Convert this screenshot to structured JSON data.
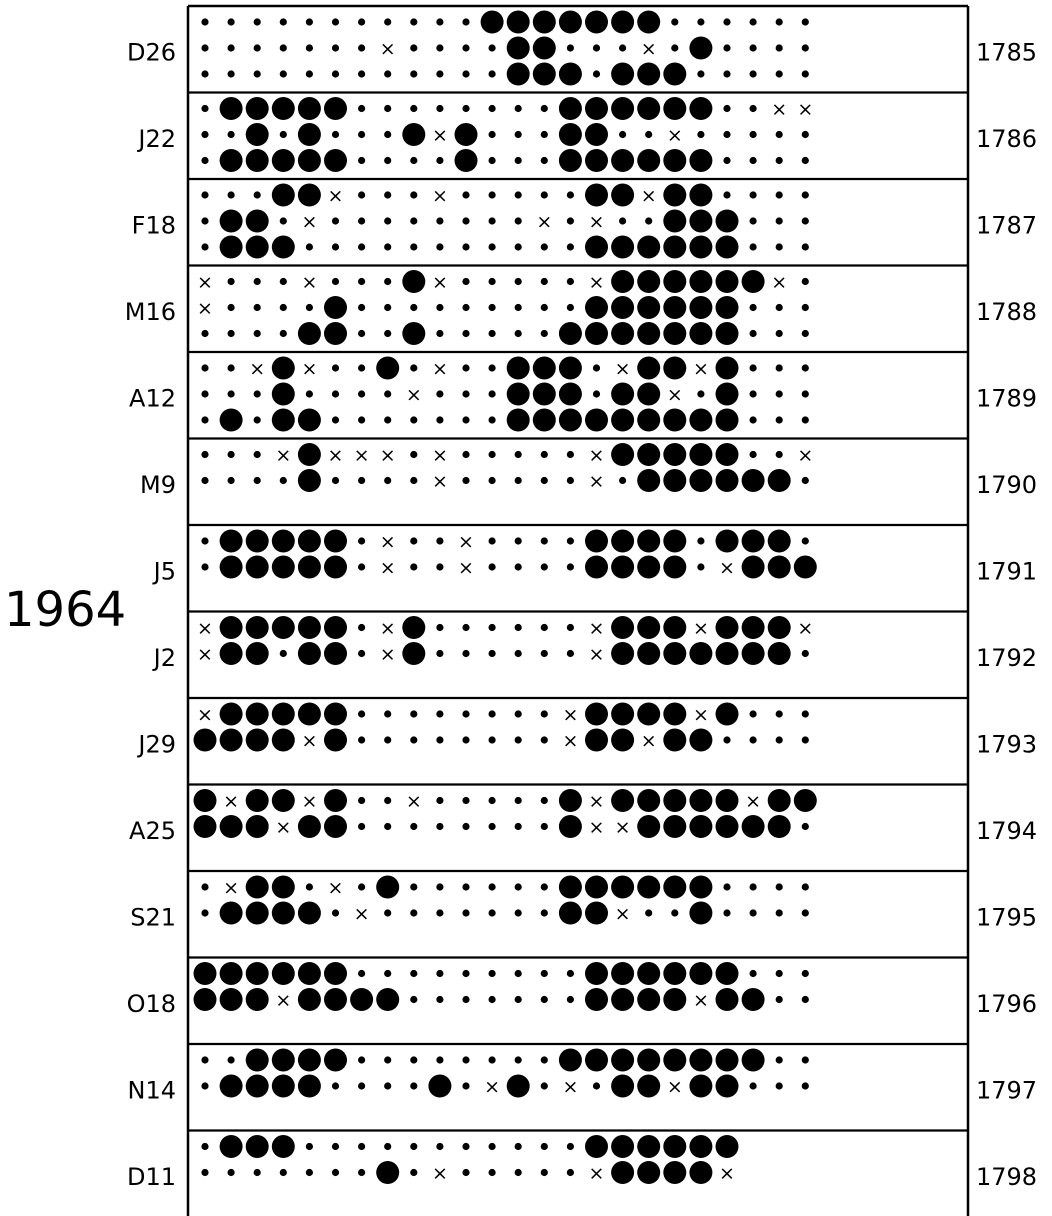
{
  "chart_data": {
    "type": "heatmap",
    "year_label": "1964",
    "symbol_legend": {
      "0": "small dot",
      "1": "cross",
      "2": "large filled dot"
    },
    "rotations": [
      {
        "start": "D26",
        "rotation": "1785",
        "cells": [
          "000000000002222222000000",
          "000000010000220001020000",
          "000000000000222022200000"
        ]
      },
      {
        "start": "J22",
        "rotation": "1786",
        "cells": [
          "022222000000002222220011",
          "002020002120002200100000",
          "022222000020002222220000"
        ]
      },
      {
        "start": "F18",
        "rotation": "1787",
        "cells": [
          "000221000100000221220000",
          "022010000000010100222000",
          "022200000000000222222000"
        ]
      },
      {
        "start": "M16",
        "rotation": "1788",
        "cells": [
          "100010002100000122222210",
          "100002000000000222222000",
          "000022002000002222222000"
        ]
      },
      {
        "start": "A12",
        "rotation": "1789",
        "cells": [
          "001210020100222012212000",
          "000200001000222022102000",
          "020220000000222222222000"
        ]
      },
      {
        "start": "M9",
        "rotation": "1790",
        "cells": [
          "000121110100000122222001",
          "000020000100000102222220"
        ]
      },
      {
        "start": "J5",
        "rotation": "1791",
        "cells": [
          "022222010010000222202220",
          "022222010010000222201222"
        ]
      },
      {
        "start": "J2",
        "rotation": "1792",
        "cells": [
          "122222012000000122212221",
          "122022012000000122222220"
        ]
      },
      {
        "start": "J29",
        "rotation": "1793",
        "cells": [
          "122222000000001222212000",
          "222212000000001221220000"
        ]
      },
      {
        "start": "A25",
        "rotation": "1794",
        "cells": [
          "212212001000002122222122",
          "222122000000002112222220"
        ]
      },
      {
        "start": "S21",
        "rotation": "1795",
        "cells": [
          "012201020000002222220000",
          "022220100000002210020000"
        ]
      },
      {
        "start": "O18",
        "rotation": "1796",
        "cells": [
          "222222000000000222222000",
          "222122220000000222212200"
        ]
      },
      {
        "start": "N14",
        "rotation": "1797",
        "cells": [
          "002222000000002222222200",
          "022220000201201022122000"
        ]
      },
      {
        "start": "D11",
        "rotation": "1798",
        "cells": [
          "022200000000000222222",
          "000000020100000122221"
        ]
      }
    ]
  }
}
